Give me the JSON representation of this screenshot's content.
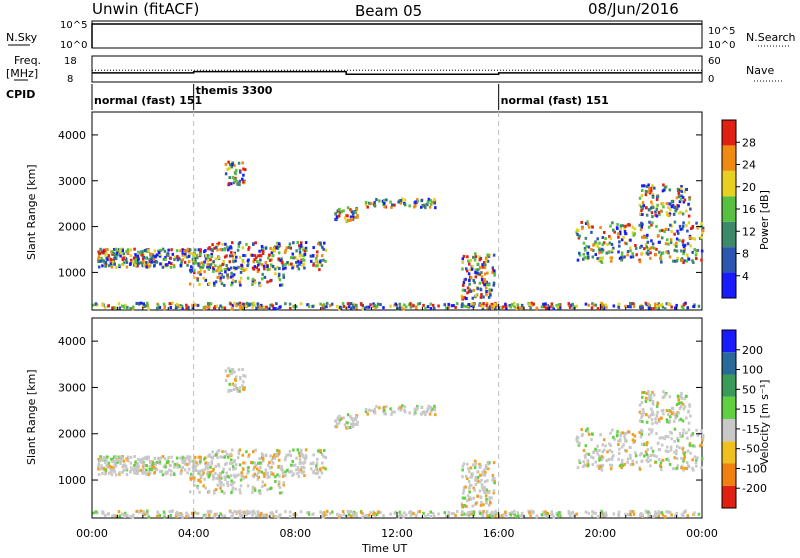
{
  "header": {
    "station": "Unwin (fitACF)",
    "beam": "Beam 05",
    "date": "08/Jun/2016"
  },
  "side_labels": {
    "nsky": "N.Sky",
    "nsearch": "N.Search",
    "freq_line1": "Freq.",
    "freq_line2": "[MHz]",
    "nave": "Nave",
    "cpid": "CPID"
  },
  "small_axes": {
    "noise_left_top": "10^5",
    "noise_left_bottom": "10^0",
    "noise_right_top": "10^5",
    "noise_right_bottom": "10^0",
    "freq_top": "18",
    "freq_bottom": "8",
    "nave_top": "60",
    "nave_bottom": "0"
  },
  "cpid_segments": [
    {
      "label": "normal (fast) 151",
      "start": 0.0,
      "end": 4.0
    },
    {
      "label": "themis 3300",
      "start": 4.0,
      "end": 16.0
    },
    {
      "label": "normal (fast) 151",
      "start": 16.0,
      "end": 24.0
    }
  ],
  "chart_data": [
    {
      "type": "heatmap",
      "name": "power",
      "ylabel": "Slant Range [km]",
      "ylim": [
        180,
        4500
      ],
      "yticks": [
        1000,
        2000,
        3000,
        4000
      ],
      "colorbar_label": "Power [dB]",
      "colorbar_ticks": [
        "4",
        "8",
        "12",
        "16",
        "20",
        "24",
        "28"
      ],
      "colorbar_range": [
        0,
        32
      ],
      "colors": [
        "#1a1aff",
        "#2a55b0",
        "#3d8a6a",
        "#58c040",
        "#e8d020",
        "#f08a10",
        "#e02010"
      ]
    },
    {
      "type": "heatmap",
      "name": "velocity",
      "ylabel": "Slant Range [km]",
      "ylim": [
        180,
        4500
      ],
      "yticks": [
        1000,
        2000,
        3000,
        4000
      ],
      "colorbar_label": "Velocity [m s⁻¹]",
      "colorbar_ticks": [
        "200",
        "100",
        "50",
        "15",
        "-15",
        "-50",
        "-100",
        "-200"
      ],
      "colors": [
        "#1a1aff",
        "#2a6a9a",
        "#3a9a5a",
        "#60d040",
        "#c8c8c8",
        "#f0c020",
        "#f08010",
        "#e02010"
      ]
    }
  ],
  "x_axis": {
    "label": "Time UT",
    "xlim": [
      0,
      24
    ],
    "ticks": [
      "00:00",
      "04:00",
      "08:00",
      "12:00",
      "16:00",
      "20:00",
      "00:00"
    ]
  },
  "freq_trace": [
    {
      "start": 0.0,
      "end": 4.0,
      "value": 11.5
    },
    {
      "start": 4.0,
      "end": 10.0,
      "value": 12.0
    },
    {
      "start": 10.0,
      "end": 16.0,
      "value": 11.0
    },
    {
      "start": 16.0,
      "end": 24.0,
      "value": 11.5
    }
  ],
  "nave_trace_top": 12.5,
  "noise_trace_value": "10^5"
}
